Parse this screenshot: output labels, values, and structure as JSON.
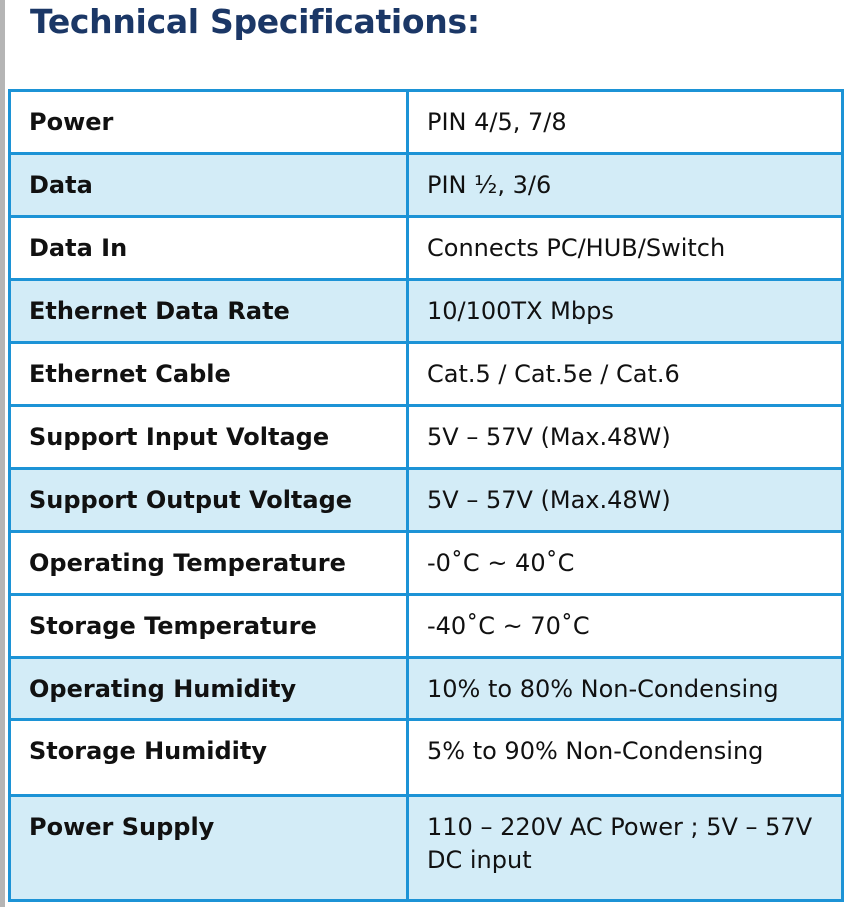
{
  "header": {
    "title": "Technical Specifications:"
  },
  "table": {
    "rows": [
      [
        "Power",
        "PIN 4/5, 7/8"
      ],
      [
        "Data",
        "PIN ½, 3/6"
      ],
      [
        "Data In",
        "Connects PC/HUB/Switch"
      ],
      [
        "Ethernet Data Rate",
        "10/100TX Mbps"
      ],
      [
        "Ethernet Cable",
        "Cat.5 / Cat.5e / Cat.6"
      ],
      [
        "Support Input Voltage",
        "5V – 57V (Max.48W)"
      ],
      [
        "Support Output Voltage",
        "5V – 57V (Max.48W)"
      ],
      [
        "Operating Temperature",
        "-0˚C ~ 40˚C"
      ],
      [
        "Storage Temperature",
        "-40˚C ~ 70˚C"
      ],
      [
        "Operating Humidity",
        "10% to 80% Non-Condensing"
      ],
      [
        "Storage Humidity",
        "5% to 90% Non-Condensing"
      ],
      [
        "Power Supply",
        "110 – 220V AC Power ; 5V – 57V DC input"
      ]
    ]
  }
}
